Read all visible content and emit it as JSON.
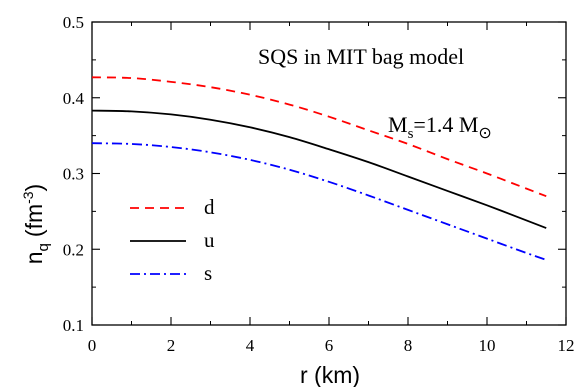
{
  "chart_data": {
    "type": "line",
    "xlabel": "r (km)",
    "ylabel_main": "n",
    "ylabel_sub": "q",
    "ylabel_unit": "(fm",
    "ylabel_exp": "-3",
    "ylabel_close": ")",
    "xlim": [
      0,
      12
    ],
    "ylim": [
      0.1,
      0.5
    ],
    "xticks": [
      0,
      2,
      4,
      6,
      8,
      10,
      12
    ],
    "xtick_labels": [
      "0",
      "2",
      "4",
      "6",
      "8",
      "10",
      "12"
    ],
    "yticks": [
      0.1,
      0.2,
      0.3,
      0.4,
      0.5
    ],
    "ytick_labels": [
      "0.1",
      "0.2",
      "0.3",
      "0.4",
      "0.5"
    ],
    "grid": false,
    "annotation_title": "SQS in MIT bag model",
    "annotation_mass": {
      "prefix": "M",
      "sub": "s",
      "value": "=1.4 M",
      "symbol": "⊙"
    },
    "legend_position": "lower-left",
    "series": [
      {
        "name": "d",
        "color": "#ff0000",
        "dash": "dashed",
        "x": [
          0,
          1,
          2,
          3,
          4,
          5,
          6,
          7,
          8,
          9,
          10,
          11,
          11.5
        ],
        "y": [
          0.427,
          0.426,
          0.421,
          0.414,
          0.404,
          0.391,
          0.375,
          0.357,
          0.339,
          0.319,
          0.3,
          0.28,
          0.27
        ]
      },
      {
        "name": "u",
        "color": "#000000",
        "dash": "solid",
        "x": [
          0,
          1,
          2,
          3,
          4,
          5,
          6,
          7,
          8,
          9,
          10,
          11,
          11.5
        ],
        "y": [
          0.383,
          0.382,
          0.378,
          0.371,
          0.361,
          0.348,
          0.332,
          0.315,
          0.296,
          0.277,
          0.258,
          0.238,
          0.228
        ]
      },
      {
        "name": "s",
        "color": "#0000ff",
        "dash": "dashdot",
        "x": [
          0,
          1,
          2,
          3,
          4,
          5,
          6,
          7,
          8,
          9,
          10,
          11,
          11.5
        ],
        "y": [
          0.34,
          0.339,
          0.335,
          0.328,
          0.318,
          0.305,
          0.289,
          0.271,
          0.252,
          0.233,
          0.214,
          0.195,
          0.186
        ]
      }
    ]
  }
}
